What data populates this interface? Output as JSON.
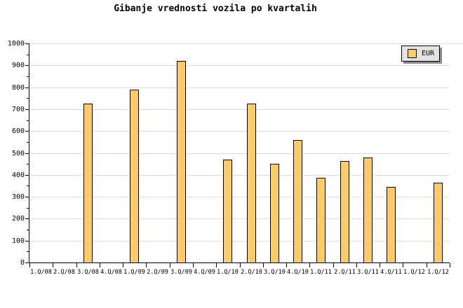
{
  "chart_data": {
    "type": "bar",
    "title": "Gibanje vrednosti vozila po kvartalih",
    "categories": [
      "1.Q/08",
      "2.Q/08",
      "3.Q/08",
      "4.Q/08",
      "1.Q/09",
      "2.Q/09",
      "3.Q/09",
      "4.Q/09",
      "1.Q/10",
      "2.Q/10",
      "3.Q/10",
      "4.Q/10",
      "1.Q/11",
      "2.Q/11",
      "3.Q/11",
      "4.Q/11",
      "1.Q/12",
      "1.Q/12"
    ],
    "series": [
      {
        "name": "EUR",
        "values": [
          null,
          null,
          725,
          null,
          790,
          null,
          920,
          null,
          470,
          725,
          450,
          558,
          385,
          463,
          478,
          345,
          null,
          365
        ]
      }
    ],
    "xlabel": "",
    "ylabel": "",
    "ylim": [
      0,
      1000
    ],
    "ytick_interval": 100,
    "yminor_tick_interval": 50,
    "grid": true,
    "legend_position": "top-right",
    "colors": {
      "bar_fill": "#FFCB66",
      "bar_border": "#000000",
      "grid_line": "#DCDCDC",
      "axis": "#000000",
      "legend_bg": "#E2E2E2",
      "legend_shadow": "#8C8C8C",
      "background": "#FFFFFF",
      "text": "#000000"
    }
  }
}
